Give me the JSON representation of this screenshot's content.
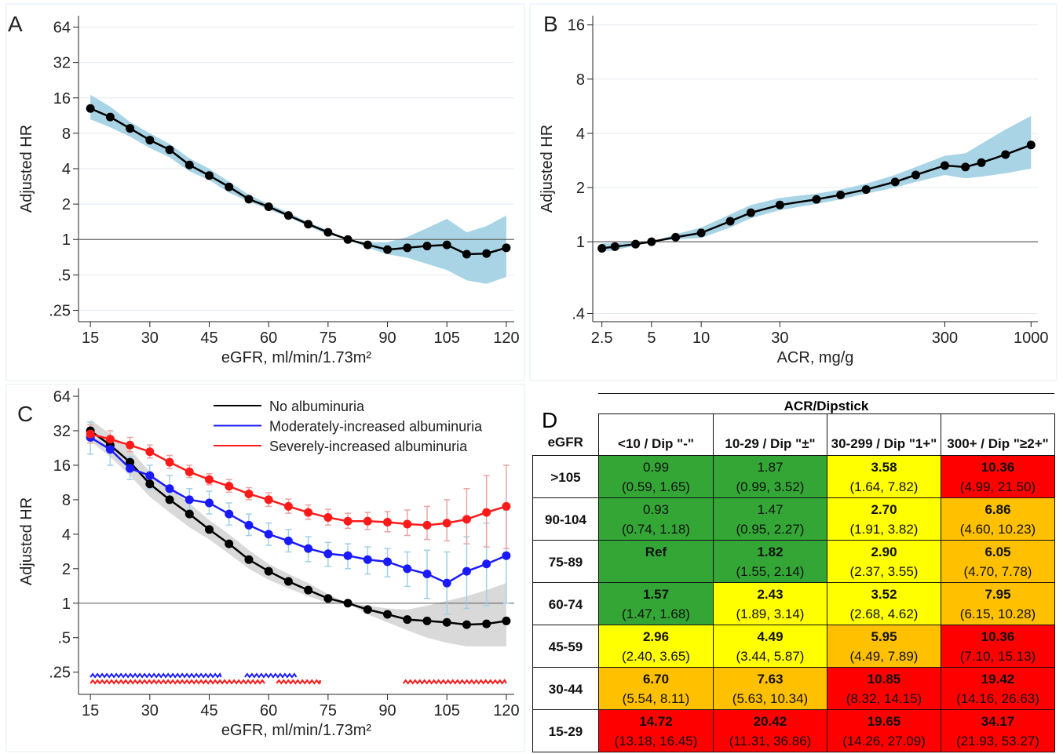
{
  "chart_data": [
    {
      "type": "line",
      "panel_label": "A",
      "xlabel": "eGFR, ml/min/1.73m²",
      "ylabel": "Adjusted HR",
      "ylog": true,
      "grid": true,
      "hline": 1,
      "xlim": [
        12,
        122
      ],
      "xticks": [
        15,
        30,
        45,
        60,
        75,
        90,
        105,
        120
      ],
      "ylim": [
        0.2,
        80
      ],
      "yticks": [
        {
          "value": 0.25,
          "label": ".25"
        },
        {
          "value": 0.5,
          "label": ".5"
        },
        1,
        2,
        4,
        8,
        16,
        32,
        64
      ],
      "x": [
        15,
        20,
        25,
        30,
        35,
        40,
        45,
        50,
        55,
        60,
        65,
        70,
        75,
        80,
        85,
        90,
        95,
        100,
        105,
        110,
        115,
        120
      ],
      "series": [
        {
          "color": "#000000",
          "band_color": "#a8d4e6",
          "band_style": "area",
          "marker": true,
          "values": [
            13,
            11,
            8.8,
            7,
            5.8,
            4.3,
            3.5,
            2.8,
            2.2,
            1.9,
            1.6,
            1.35,
            1.15,
            1,
            0.9,
            0.82,
            0.85,
            0.88,
            0.9,
            0.75,
            0.76,
            0.85
          ],
          "lower": [
            10.5,
            9,
            7.5,
            6,
            5,
            3.8,
            3.2,
            2.5,
            2.1,
            1.8,
            1.55,
            1.3,
            1.1,
            1,
            0.85,
            0.75,
            0.7,
            0.62,
            0.55,
            0.45,
            0.42,
            0.48
          ],
          "upper": [
            17,
            13.5,
            10,
            8,
            6.5,
            4.9,
            4,
            3.1,
            2.4,
            2,
            1.7,
            1.4,
            1.2,
            1,
            0.95,
            0.95,
            1.05,
            1.25,
            1.5,
            1.15,
            1.3,
            1.6
          ]
        }
      ]
    },
    {
      "type": "line",
      "panel_label": "B",
      "xlabel": "ACR, mg/g",
      "ylabel": "Adjusted HR",
      "ylog": true,
      "xlog": true,
      "grid": true,
      "hline": 1,
      "xlim": [
        2.2,
        1100
      ],
      "xticks": [
        2.5,
        5,
        10,
        30,
        300,
        1000
      ],
      "ylim": [
        0.36,
        18
      ],
      "yticks": [
        {
          "value": 0.4,
          "label": ".4"
        },
        1,
        2,
        4,
        8,
        16
      ],
      "x": [
        2.5,
        3,
        4,
        5,
        7,
        10,
        15,
        20,
        30,
        50,
        70,
        100,
        150,
        200,
        300,
        400,
        500,
        700,
        1000
      ],
      "series": [
        {
          "color": "#000000",
          "band_color": "#a8d4e6",
          "band_style": "area",
          "marker": true,
          "values": [
            0.92,
            0.94,
            0.97,
            1,
            1.06,
            1.12,
            1.3,
            1.45,
            1.6,
            1.72,
            1.82,
            1.95,
            2.15,
            2.35,
            2.65,
            2.6,
            2.75,
            3.05,
            3.45
          ],
          "lower": [
            0.88,
            0.9,
            0.95,
            1,
            1.03,
            1.05,
            1.2,
            1.35,
            1.5,
            1.62,
            1.72,
            1.85,
            2.0,
            2.15,
            2.35,
            2.25,
            2.3,
            2.4,
            2.55
          ],
          "upper": [
            0.98,
            0.98,
            1,
            1,
            1.1,
            1.2,
            1.42,
            1.6,
            1.75,
            1.85,
            1.95,
            2.1,
            2.35,
            2.6,
            3.0,
            3.1,
            3.5,
            4.2,
            5.0
          ]
        }
      ]
    },
    {
      "type": "line",
      "panel_label": "C",
      "xlabel": "eGFR, ml/min/1.73m²",
      "ylabel": "Adjusted HR",
      "ylog": true,
      "grid": false,
      "hline": 1,
      "xlim": [
        12,
        122
      ],
      "xticks": [
        15,
        30,
        45,
        60,
        75,
        90,
        105,
        120
      ],
      "ylim": [
        0.16,
        75
      ],
      "yticks": [
        {
          "value": 0.25,
          "label": ".25"
        },
        {
          "value": 0.5,
          "label": ".5"
        },
        1,
        2,
        4,
        8,
        16,
        32,
        64
      ],
      "x": [
        15,
        20,
        25,
        30,
        35,
        40,
        45,
        50,
        55,
        60,
        65,
        70,
        75,
        80,
        85,
        90,
        95,
        100,
        105,
        110,
        115,
        120
      ],
      "series": [
        {
          "name": "No albuminuria",
          "color": "#000000",
          "band_color": "#d9d9d9",
          "band_style": "area",
          "marker": true,
          "values": [
            32,
            24,
            17,
            11,
            8,
            6,
            4.4,
            3.3,
            2.4,
            1.9,
            1.55,
            1.3,
            1.1,
            1,
            0.88,
            0.8,
            0.72,
            0.7,
            0.68,
            0.65,
            0.66,
            0.7
          ],
          "lower": [
            26,
            19,
            13,
            8.5,
            6.2,
            4.6,
            3.6,
            2.7,
            2.0,
            1.6,
            1.35,
            1.15,
            1.0,
            1,
            0.8,
            0.68,
            0.58,
            0.5,
            0.45,
            0.42,
            0.42,
            0.42
          ],
          "upper": [
            40,
            30,
            22,
            14,
            10,
            7.5,
            5.3,
            4,
            2.9,
            2.2,
            1.8,
            1.5,
            1.2,
            1,
            0.95,
            0.9,
            0.88,
            0.95,
            1.05,
            1.15,
            1.3,
            1.5
          ]
        },
        {
          "name": "Moderately-increased albuminuria",
          "color": "#1a1aff",
          "band_color": "#9fd0e6",
          "band_style": "bars",
          "marker": true,
          "values": [
            28,
            22,
            15,
            13,
            10,
            8,
            7.5,
            6,
            4.8,
            4,
            3.5,
            3,
            2.7,
            2.6,
            2.4,
            2.3,
            2.0,
            1.8,
            1.5,
            1.9,
            2.2,
            2.6
          ],
          "lower": [
            20,
            16,
            12,
            10,
            8,
            6.5,
            6,
            4.8,
            3.9,
            3.2,
            2.8,
            2.3,
            2.1,
            2.0,
            1.8,
            1.7,
            1.4,
            1.1,
            0.8,
            0.9,
            0.95,
            1.0
          ],
          "upper": [
            38,
            28,
            19,
            16,
            13,
            10,
            9.5,
            7.5,
            6,
            5,
            4.4,
            3.8,
            3.4,
            3.3,
            3.1,
            3.0,
            2.8,
            2.9,
            2.8,
            3.8,
            5,
            6.5
          ]
        },
        {
          "name": "Severely-increased albuminuria",
          "color": "#ff1a1a",
          "band_color": "#eba3a3",
          "band_style": "bars",
          "marker": true,
          "values": [
            30,
            27,
            24,
            21,
            17,
            14,
            12,
            10.5,
            9,
            8,
            7,
            6.2,
            5.6,
            5.2,
            5.2,
            5.1,
            4.9,
            4.8,
            5.0,
            5.4,
            6.2,
            7
          ],
          "lower": [
            25,
            23,
            21,
            18.5,
            15,
            12.5,
            10.8,
            9.3,
            8,
            7,
            6.1,
            5.4,
            4.8,
            4.5,
            4.4,
            4.2,
            3.9,
            3.6,
            3.5,
            3.3,
            3.1,
            3.0
          ],
          "upper": [
            36,
            32,
            28,
            24,
            19.5,
            16,
            13.5,
            12,
            10.2,
            9.2,
            8.1,
            7.2,
            6.6,
            6.1,
            6.2,
            6.3,
            6.5,
            7,
            8,
            10,
            13,
            16
          ]
        }
      ],
      "significance": [
        {
          "color": "#1a1aff",
          "ranges": [
            [
              15,
              48
            ],
            [
              54,
              67
            ]
          ]
        },
        {
          "color": "#ff1a1a",
          "ranges": [
            [
              15,
              59
            ],
            [
              62,
              73
            ],
            [
              94,
              120
            ]
          ]
        }
      ]
    }
  ],
  "table": {
    "panel_label": "D",
    "group_header": "ACR/Dipstick",
    "row_header": "eGFR",
    "columns": [
      "<10 / Dip \"-\"",
      "10-29 / Dip \"±\"",
      "30-299 / Dip \"1+\"",
      "300+ / Dip \"≥2+\""
    ],
    "rows": [
      {
        "label": ">105",
        "cells": [
          {
            "value": "0.99",
            "ci": "(0.59, 1.65)",
            "bold": false,
            "color": "#33a635"
          },
          {
            "value": "1.87",
            "ci": "(0.99, 3.52)",
            "bold": false,
            "color": "#33a635"
          },
          {
            "value": "3.58",
            "ci": "(1.64, 7.82)",
            "bold": true,
            "color": "#ffff00"
          },
          {
            "value": "10.36",
            "ci": "(4.99, 21.50)",
            "bold": true,
            "color": "#ff0000"
          }
        ]
      },
      {
        "label": "90-104",
        "cells": [
          {
            "value": "0.93",
            "ci": "(0.74, 1.18)",
            "bold": false,
            "color": "#33a635"
          },
          {
            "value": "1.47",
            "ci": "(0.95, 2.27)",
            "bold": false,
            "color": "#33a635"
          },
          {
            "value": "2.70",
            "ci": "(1.91, 3.82)",
            "bold": true,
            "color": "#ffff00"
          },
          {
            "value": "6.86",
            "ci": "(4.60, 10.23)",
            "bold": true,
            "color": "#ffc000"
          }
        ]
      },
      {
        "label": "75-89",
        "cells": [
          {
            "value": "Ref",
            "bold": true,
            "color": "#33a635"
          },
          {
            "value": "1.82",
            "ci": "(1.55, 2.14)",
            "bold": true,
            "color": "#33a635"
          },
          {
            "value": "2.90",
            "ci": "(2.37, 3.55)",
            "bold": true,
            "color": "#ffff00"
          },
          {
            "value": "6.05",
            "ci": "(4.70, 7.78)",
            "bold": true,
            "color": "#ffc000"
          }
        ]
      },
      {
        "label": "60-74",
        "cells": [
          {
            "value": "1.57",
            "ci": "(1.47, 1.68)",
            "bold": true,
            "color": "#33a635"
          },
          {
            "value": "2.43",
            "ci": "(1.89, 3.14)",
            "bold": true,
            "color": "#ffff00"
          },
          {
            "value": "3.52",
            "ci": "(2.68, 4.62)",
            "bold": true,
            "color": "#ffff00"
          },
          {
            "value": "7.95",
            "ci": "(6.15, 10.28)",
            "bold": true,
            "color": "#ffc000"
          }
        ]
      },
      {
        "label": "45-59",
        "cells": [
          {
            "value": "2.96",
            "ci": "(2.40, 3.65)",
            "bold": true,
            "color": "#ffff00"
          },
          {
            "value": "4.49",
            "ci": "(3.44, 5.87)",
            "bold": true,
            "color": "#ffff00"
          },
          {
            "value": "5.95",
            "ci": "(4.49, 7.89)",
            "bold": true,
            "color": "#ffc000"
          },
          {
            "value": "10.36",
            "ci": "(7.10, 15.13)",
            "bold": true,
            "color": "#ff0000"
          }
        ]
      },
      {
        "label": "30-44",
        "cells": [
          {
            "value": "6.70",
            "ci": "(5.54, 8.11)",
            "bold": true,
            "color": "#ffc000"
          },
          {
            "value": "7.63",
            "ci": "(5.63, 10.34)",
            "bold": true,
            "color": "#ffc000"
          },
          {
            "value": "10.85",
            "ci": "(8.32, 14.15)",
            "bold": true,
            "color": "#ff0000"
          },
          {
            "value": "19.42",
            "ci": "(14.16, 26.63)",
            "bold": true,
            "color": "#ff0000"
          }
        ]
      },
      {
        "label": "15-29",
        "cells": [
          {
            "value": "14.72",
            "ci": "(13.18, 16.45)",
            "bold": true,
            "color": "#ff0000"
          },
          {
            "value": "20.42",
            "ci": "(11.31, 36.86)",
            "bold": true,
            "color": "#ff0000"
          },
          {
            "value": "19.65",
            "ci": "(14.26, 27.09)",
            "bold": true,
            "color": "#ff0000"
          },
          {
            "value": "34.17",
            "ci": "(21.93, 53.27)",
            "bold": true,
            "color": "#ff0000"
          }
        ]
      }
    ]
  }
}
